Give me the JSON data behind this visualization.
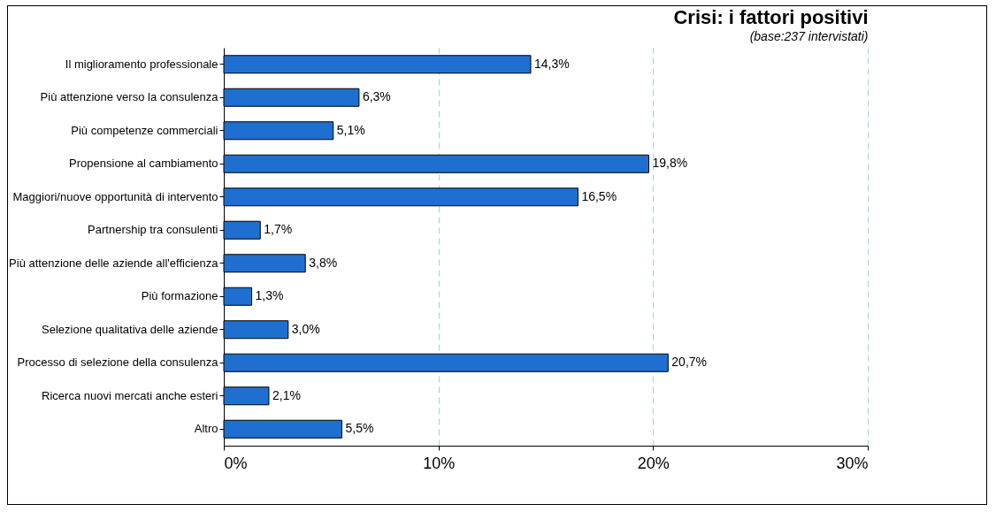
{
  "chart_data": {
    "type": "bar",
    "orientation": "horizontal",
    "title": "Crisi: i fattori positivi",
    "subtitle": "(base:237 intervistati)",
    "categories": [
      "Il miglioramento professionale",
      "Più attenzione verso la consulenza",
      "Più competenze commerciali",
      "Propensione al cambiamento",
      "Maggiori/nuove opportunità di intervento",
      "Partnership tra consulenti",
      "Più attenzione delle aziende all'efficienza",
      "Più formazione",
      "Selezione qualitativa delle aziende",
      "Processo di selezione della consulenza",
      "Ricerca nuovi mercati anche esteri",
      "Altro"
    ],
    "values": [
      14.3,
      6.3,
      5.1,
      19.8,
      16.5,
      1.7,
      3.8,
      1.3,
      3.0,
      20.7,
      2.1,
      5.5
    ],
    "value_labels": [
      "14,3%",
      "6,3%",
      "5,1%",
      "19,8%",
      "16,5%",
      "1,7%",
      "3,8%",
      "1,3%",
      "3,0%",
      "20,7%",
      "2,1%",
      "5,5%"
    ],
    "color": "#1f6fd0",
    "xlim": [
      0,
      30
    ],
    "xticks": [
      {
        "value": 0,
        "label": "0%"
      },
      {
        "value": 10,
        "label": "10%"
      },
      {
        "value": 20,
        "label": "20%"
      },
      {
        "value": 30,
        "label": "30%"
      }
    ],
    "grid": "x"
  }
}
